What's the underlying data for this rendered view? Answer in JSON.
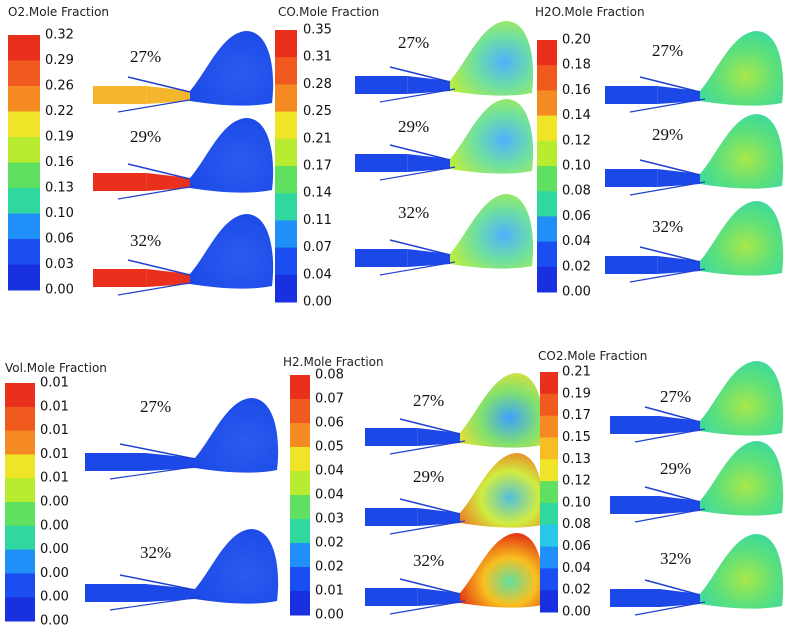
{
  "panels": [
    {
      "title": "O2.Mole Fraction",
      "ticks": [
        "0.32",
        "0.29",
        "0.26",
        "0.22",
        "0.19",
        "0.16",
        "0.13",
        "0.10",
        "0.06",
        "0.03",
        "0.00"
      ],
      "cases": [
        "27%",
        "29%",
        "32%"
      ]
    },
    {
      "title": "CO.Mole Fraction",
      "ticks": [
        "0.35",
        "0.31",
        "0.28",
        "0.25",
        "0.21",
        "0.17",
        "0.14",
        "0.11",
        "0.07",
        "0.04",
        "0.00"
      ],
      "cases": [
        "27%",
        "29%",
        "32%"
      ]
    },
    {
      "title": "H2O.Mole Fraction",
      "ticks": [
        "0.20",
        "0.18",
        "0.16",
        "0.14",
        "0.12",
        "0.10",
        "0.08",
        "0.06",
        "0.04",
        "0.02",
        "0.00"
      ],
      "cases": [
        "27%",
        "29%",
        "32%"
      ]
    },
    {
      "title": "Vol.Mole Fraction",
      "ticks": [
        "0.01",
        "0.01",
        "0.01",
        "0.01",
        "0.01",
        "0.00",
        "0.00",
        "0.00",
        "0.00",
        "0.00",
        "0.00"
      ],
      "cases": [
        "27%",
        "32%"
      ]
    },
    {
      "title": "H2.Mole Fraction",
      "ticks": [
        "0.08",
        "0.07",
        "0.06",
        "0.05",
        "0.04",
        "0.04",
        "0.03",
        "0.02",
        "0.02",
        "0.01",
        "0.00"
      ],
      "cases": [
        "27%",
        "29%",
        "32%"
      ]
    },
    {
      "title": "CO2.Mole Fraction",
      "ticks": [
        "0.21",
        "0.19",
        "0.17",
        "0.15",
        "0.13",
        "0.12",
        "0.10",
        "0.08",
        "0.06",
        "0.04",
        "0.02",
        "0.00"
      ],
      "cases": [
        "27%",
        "29%",
        "32%"
      ]
    }
  ]
}
